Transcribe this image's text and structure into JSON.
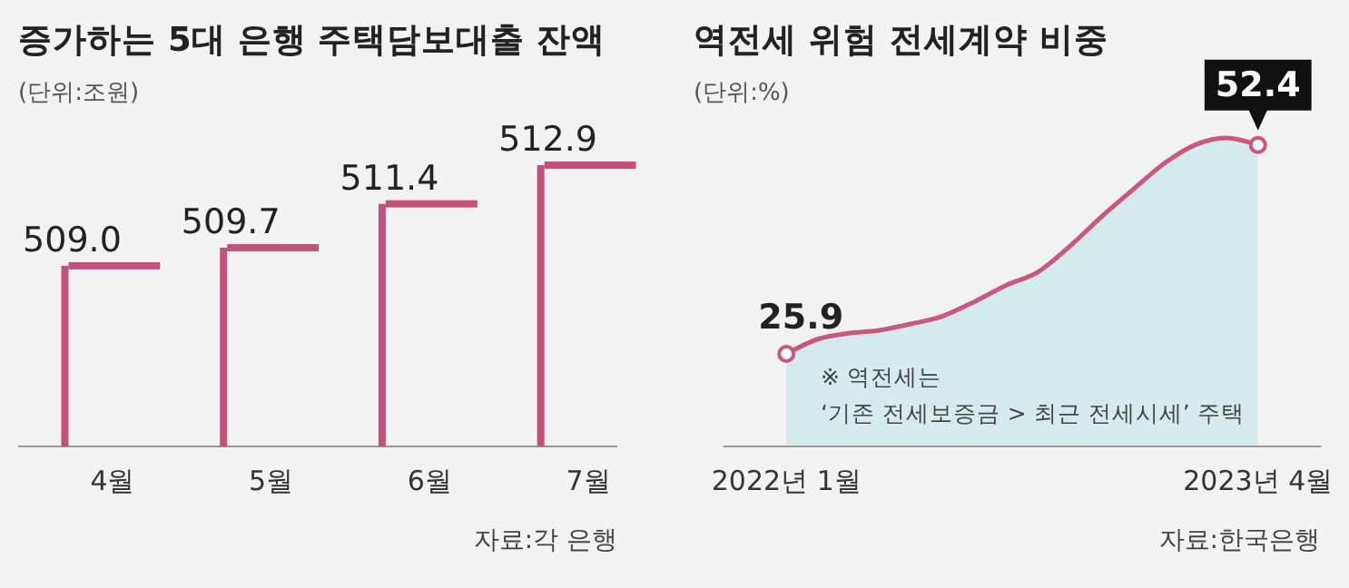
{
  "chart_data": [
    {
      "type": "bar",
      "title": "증가하는 5대 은행 주택담보대출 잔액",
      "subtitle": "(단위:조원)",
      "categories": [
        "4월",
        "5월",
        "6월",
        "7월"
      ],
      "values": [
        509.0,
        509.7,
        511.4,
        512.9
      ],
      "value_labels": [
        "509.0",
        "509.7",
        "511.4",
        "512.9"
      ],
      "color": "#c4507c",
      "ylim": [
        502,
        512.9
      ],
      "tick_labels": "x",
      "annotations": [
        "자료:각 은행"
      ]
    },
    {
      "type": "area",
      "title": "역전세 위험 전세계약 비중",
      "subtitle": "(단위:%)",
      "x": [
        "2022-01",
        "2022-02",
        "2022-03",
        "2022-04",
        "2022-05",
        "2022-06",
        "2022-07",
        "2022-08",
        "2022-09",
        "2022-10",
        "2022-11",
        "2022-12",
        "2023-01",
        "2023-02",
        "2023-03",
        "2023-04"
      ],
      "values": [
        25.9,
        27.8,
        28.5,
        28.9,
        29.7,
        30.7,
        32.5,
        34.6,
        36.3,
        39.5,
        43.3,
        46.7,
        50.1,
        52.5,
        53.3,
        52.4
      ],
      "value_labels": [
        "25.9",
        null,
        null,
        null,
        null,
        null,
        null,
        null,
        null,
        null,
        null,
        null,
        null,
        null,
        null,
        "52.4"
      ],
      "color": "#c9577f",
      "xlim": [
        "2021-11",
        "2023-06"
      ],
      "xticks": [
        {
          "value": "2022-01",
          "label": "2022년 1월"
        },
        {
          "value": "2023-04",
          "label": "2023년 4월"
        }
      ],
      "tick_labels": "x",
      "annotations": [
        "※ 역전세는",
        "‘기존 전세보증금 > 최근 전세시세’ 주택",
        "자료:한국은행"
      ]
    }
  ]
}
